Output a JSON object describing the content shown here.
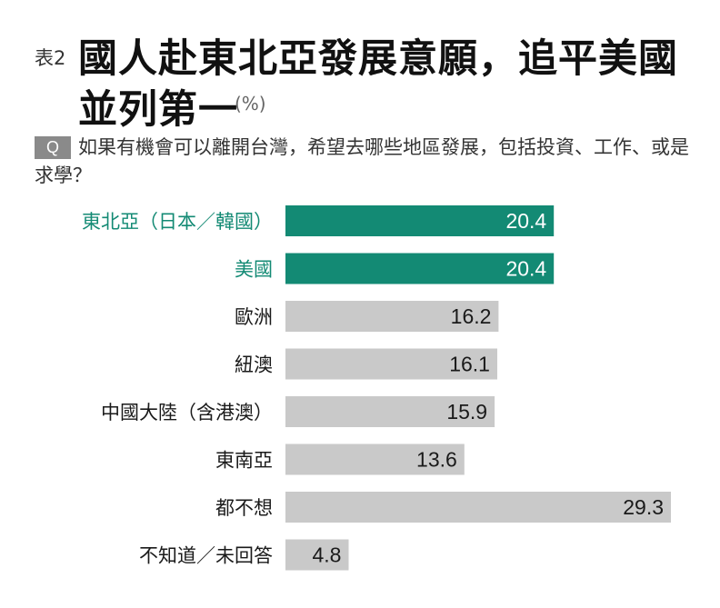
{
  "header": {
    "table_no": "表2",
    "title_line1": "國人赴東北亞發展意願，追平美國",
    "title_line2": "並列第一",
    "unit": "(%)"
  },
  "question": {
    "badge": "Q",
    "text": "如果有機會可以離開台灣，希望去哪些地區發展，包括投資、工作、或是求學？"
  },
  "colors": {
    "highlight": "#138a74",
    "bar": "#c9c9c9",
    "value_on_highlight": "#ffffff",
    "value_on_bar": "#1a1a1a",
    "label_highlight": "#138a74",
    "label": "#1a1a1a"
  },
  "chart_data": {
    "type": "bar",
    "orientation": "horizontal",
    "categories": [
      "東北亞（日本／韓國）",
      "美國",
      "歐洲",
      "紐澳",
      "中國大陸（含港澳）",
      "東南亞",
      "都不想",
      "不知道／未回答"
    ],
    "values": [
      20.4,
      20.4,
      16.2,
      16.1,
      15.9,
      13.6,
      29.3,
      4.8
    ],
    "highlighted": [
      true,
      true,
      false,
      false,
      false,
      false,
      false,
      false
    ],
    "unit": "%",
    "xlim": [
      0,
      29.3
    ],
    "grid": false
  }
}
